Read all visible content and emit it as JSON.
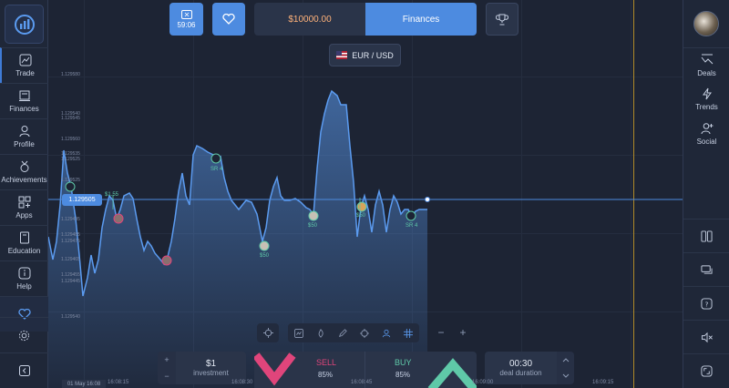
{
  "header": {
    "timer": "59:06",
    "balance": "$10000.00",
    "finances_label": "Finances",
    "pair": "EUR / USD"
  },
  "sidebar_left": {
    "items": [
      {
        "label": "Trade",
        "icon": "trade-chart-icon"
      },
      {
        "label": "Finances",
        "icon": "bank-icon"
      },
      {
        "label": "Profile",
        "icon": "user-icon"
      },
      {
        "label": "Achievements",
        "icon": "medal-icon"
      },
      {
        "label": "Apps",
        "icon": "apps-icon"
      },
      {
        "label": "Education",
        "icon": "book-icon"
      },
      {
        "label": "Help",
        "icon": "info-icon"
      }
    ]
  },
  "sidebar_right": {
    "items": [
      {
        "label": "Deals",
        "icon": "deals-icon"
      },
      {
        "label": "Trends",
        "icon": "lightning-icon"
      },
      {
        "label": "Social",
        "icon": "add-user-icon"
      }
    ]
  },
  "chart": {
    "current_price": "1.129505",
    "y_labels": [
      "1.129580",
      "1.129540",
      "1.129545",
      "1.129560",
      "1.129535",
      "1.129525",
      "1.129525",
      "1.129495",
      "1.129485",
      "1.129475",
      "1.129465",
      "1.129455",
      "1.129445",
      "1.129540"
    ],
    "x_labels": [
      "16:08:15",
      "16:08:30",
      "16:08:45",
      "16:09:00",
      "16:09:15"
    ],
    "date_tag": "01 May 16:08",
    "marker_labels": [
      "$1.55",
      "SR 4",
      "$50",
      "$50",
      "$50",
      "SR 4"
    ]
  },
  "trade": {
    "investment_value": "$1",
    "investment_label": "investment",
    "sell_label": "SELL",
    "sell_pct": "85%",
    "buy_label": "BUY",
    "buy_pct": "85%",
    "duration_value": "00:30",
    "duration_label": "deal duration",
    "plus": "+",
    "minus": "−"
  },
  "colors": {
    "accent": "#4d8be0",
    "sell": "#e0457b",
    "buy": "#5fc9a8",
    "balance": "#ffb27a",
    "line": "#5b9bf0"
  }
}
